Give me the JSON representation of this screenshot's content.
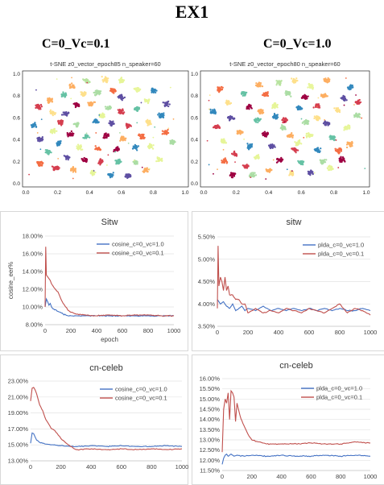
{
  "title": "EX1",
  "columns": [
    {
      "heading": "C=0_Vc=0.1"
    },
    {
      "heading": "C=0_Vc=1.0"
    }
  ],
  "chart_data": [
    {
      "type": "scatter",
      "title": "t-SNE z0_vector_epoch85 n_speaker=60",
      "xlim": [
        0,
        1
      ],
      "ylim": [
        0,
        1
      ],
      "xticks": [
        "0.0",
        "0.2",
        "0.4",
        "0.6",
        "0.8",
        "1.0"
      ],
      "yticks": [
        "0.0",
        "0.2",
        "0.4",
        "0.6",
        "0.8",
        "1.0"
      ],
      "clusters": [
        [
          0.38,
          0.94,
          "#b8e3a0"
        ],
        [
          0.5,
          0.95,
          "#fee08b"
        ],
        [
          0.29,
          0.89,
          "#fdae61"
        ],
        [
          0.7,
          0.86,
          "#e8f69c"
        ],
        [
          0.55,
          0.85,
          "#f46d43"
        ],
        [
          0.45,
          0.83,
          "#abdda4"
        ],
        [
          0.24,
          0.81,
          "#66c2a5"
        ],
        [
          0.36,
          0.82,
          "#fee08b"
        ],
        [
          0.6,
          0.79,
          "#5e4fa2"
        ],
        [
          0.76,
          0.76,
          "#e6f598"
        ],
        [
          0.8,
          0.85,
          "#3288bd"
        ],
        [
          0.15,
          0.76,
          "#fdae61"
        ],
        [
          0.08,
          0.7,
          "#d53e4f"
        ],
        [
          0.17,
          0.65,
          "#fee08b"
        ],
        [
          0.32,
          0.72,
          "#9e0142"
        ],
        [
          0.41,
          0.73,
          "#fdae61"
        ],
        [
          0.52,
          0.69,
          "#abdda4"
        ],
        [
          0.6,
          0.66,
          "#d53e4f"
        ],
        [
          0.7,
          0.68,
          "#66c2a5"
        ],
        [
          0.85,
          0.62,
          "#3288bd"
        ],
        [
          0.88,
          0.73,
          "#5e4fa2"
        ],
        [
          0.22,
          0.56,
          "#d53e4f"
        ],
        [
          0.32,
          0.54,
          "#abdda4"
        ],
        [
          0.44,
          0.57,
          "#3288bd"
        ],
        [
          0.54,
          0.55,
          "#5e4fa2"
        ],
        [
          0.64,
          0.53,
          "#d53e4f"
        ],
        [
          0.77,
          0.56,
          "#fee08b"
        ],
        [
          0.17,
          0.48,
          "#e6f598"
        ],
        [
          0.05,
          0.53,
          "#3288bd"
        ],
        [
          0.28,
          0.45,
          "#9e0142"
        ],
        [
          0.38,
          0.43,
          "#66c2a5"
        ],
        [
          0.5,
          0.44,
          "#9e0142"
        ],
        [
          0.61,
          0.41,
          "#fdae61"
        ],
        [
          0.73,
          0.43,
          "#f46d43"
        ],
        [
          0.92,
          0.38,
          "#abdda4"
        ],
        [
          0.09,
          0.41,
          "#5e4fa2"
        ],
        [
          0.21,
          0.37,
          "#3288bd"
        ],
        [
          0.34,
          0.33,
          "#e6f598"
        ],
        [
          0.45,
          0.32,
          "#f46d43"
        ],
        [
          0.57,
          0.31,
          "#9e0142"
        ],
        [
          0.69,
          0.33,
          "#3288bd"
        ],
        [
          0.78,
          0.34,
          "#e6f598"
        ],
        [
          0.14,
          0.29,
          "#66c2a5"
        ],
        [
          0.26,
          0.24,
          "#5e4fa2"
        ],
        [
          0.37,
          0.22,
          "#9e0142"
        ],
        [
          0.47,
          0.2,
          "#d53e4f"
        ],
        [
          0.58,
          0.2,
          "#66c2a5"
        ],
        [
          0.69,
          0.19,
          "#abdda4"
        ],
        [
          0.84,
          0.22,
          "#e6f598"
        ],
        [
          0.19,
          0.14,
          "#d53e4f"
        ],
        [
          0.3,
          0.13,
          "#fdae61"
        ],
        [
          0.42,
          0.1,
          "#e6f598"
        ],
        [
          0.53,
          0.08,
          "#3288bd"
        ],
        [
          0.64,
          0.07,
          "#5e4fa2"
        ],
        [
          0.75,
          0.12,
          "#fdae61"
        ],
        [
          0.09,
          0.18,
          "#f46d43"
        ],
        [
          0.6,
          0.94,
          "#e6f598"
        ],
        [
          0.88,
          0.47,
          "#f46d43"
        ],
        [
          0.25,
          0.64,
          "#5e4fa2"
        ],
        [
          0.48,
          0.62,
          "#e6f598"
        ]
      ]
    },
    {
      "type": "scatter",
      "title": "t-SNE z0_vector_epoch80 n_speaker=60",
      "xlim": [
        0,
        1
      ],
      "ylim": [
        0,
        1
      ],
      "xticks": [
        "0.0",
        "0.2",
        "0.4",
        "0.6",
        "0.8",
        "1.0"
      ],
      "yticks": [
        "0.0",
        "0.2",
        "0.4",
        "0.6",
        "0.8",
        "1.0"
      ],
      "clusters": [
        [
          0.46,
          0.92,
          "#b8e3a0"
        ],
        [
          0.56,
          0.94,
          "#fee08b"
        ],
        [
          0.34,
          0.9,
          "#fdae61"
        ],
        [
          0.66,
          0.89,
          "#e8f69c"
        ],
        [
          0.25,
          0.82,
          "#66c2a5"
        ],
        [
          0.38,
          0.81,
          "#f46d43"
        ],
        [
          0.52,
          0.82,
          "#abdda4"
        ],
        [
          0.74,
          0.8,
          "#fdae61"
        ],
        [
          0.86,
          0.78,
          "#5e4fa2"
        ],
        [
          0.15,
          0.74,
          "#fee08b"
        ],
        [
          0.06,
          0.66,
          "#3288bd"
        ],
        [
          0.28,
          0.7,
          "#9e0142"
        ],
        [
          0.44,
          0.71,
          "#e6f598"
        ],
        [
          0.59,
          0.69,
          "#3288bd"
        ],
        [
          0.7,
          0.71,
          "#d53e4f"
        ],
        [
          0.82,
          0.67,
          "#fee08b"
        ],
        [
          0.94,
          0.62,
          "#abdda4"
        ],
        [
          0.17,
          0.6,
          "#5e4fa2"
        ],
        [
          0.33,
          0.58,
          "#66c2a5"
        ],
        [
          0.5,
          0.58,
          "#d53e4f"
        ],
        [
          0.63,
          0.56,
          "#abdda4"
        ],
        [
          0.76,
          0.55,
          "#5e4fa2"
        ],
        [
          0.88,
          0.51,
          "#e6f598"
        ],
        [
          0.08,
          0.52,
          "#d53e4f"
        ],
        [
          0.22,
          0.47,
          "#fdae61"
        ],
        [
          0.38,
          0.45,
          "#9e0142"
        ],
        [
          0.53,
          0.44,
          "#fdae61"
        ],
        [
          0.65,
          0.44,
          "#e6f598"
        ],
        [
          0.79,
          0.42,
          "#66c2a5"
        ],
        [
          0.9,
          0.36,
          "#fdae61"
        ],
        [
          0.12,
          0.39,
          "#e6f598"
        ],
        [
          0.28,
          0.34,
          "#3288bd"
        ],
        [
          0.42,
          0.34,
          "#5e4fa2"
        ],
        [
          0.56,
          0.31,
          "#d53e4f"
        ],
        [
          0.7,
          0.31,
          "#3288bd"
        ],
        [
          0.83,
          0.3,
          "#f46d43"
        ],
        [
          0.19,
          0.27,
          "#d53e4f"
        ],
        [
          0.33,
          0.24,
          "#e6f598"
        ],
        [
          0.47,
          0.21,
          "#9e0142"
        ],
        [
          0.6,
          0.19,
          "#66c2a5"
        ],
        [
          0.73,
          0.2,
          "#abdda4"
        ],
        [
          0.26,
          0.16,
          "#d53e4f"
        ],
        [
          0.4,
          0.12,
          "#fdae61"
        ],
        [
          0.54,
          0.09,
          "#fee08b"
        ],
        [
          0.66,
          0.1,
          "#5e4fa2"
        ],
        [
          0.78,
          0.14,
          "#e6f598"
        ],
        [
          0.13,
          0.21,
          "#f46d43"
        ],
        [
          0.49,
          0.51,
          "#abdda4"
        ],
        [
          0.35,
          0.66,
          "#fdae61"
        ],
        [
          0.62,
          0.79,
          "#9e0142"
        ],
        [
          0.9,
          0.88,
          "#3288bd"
        ],
        [
          0.1,
          0.86,
          "#f46d43"
        ],
        [
          0.85,
          0.22,
          "#9e0142"
        ],
        [
          0.95,
          0.74,
          "#d53e4f"
        ],
        [
          0.44,
          0.61,
          "#3288bd"
        ],
        [
          0.7,
          0.6,
          "#fee08b"
        ],
        [
          0.58,
          0.37,
          "#e6f598"
        ],
        [
          0.3,
          0.08,
          "#abdda4"
        ],
        [
          0.18,
          0.08,
          "#9e0142"
        ],
        [
          0.76,
          0.94,
          "#fdae61"
        ]
      ]
    },
    {
      "type": "line",
      "title": "Sitw",
      "xlabel": "epoch",
      "ylabel": "cosine_eer%",
      "xlim": [
        0,
        1000
      ],
      "ylim": [
        8,
        18
      ],
      "xticks": [
        0,
        200,
        400,
        600,
        800,
        1000
      ],
      "yticks": [
        "8.00%",
        "10.00%",
        "12.00%",
        "14.00%",
        "16.00%",
        "18.00%"
      ],
      "legend_position": "top-right",
      "series": [
        {
          "name": "cosine_c=0_vc=1.0",
          "color": "#4472c4",
          "x": [
            0,
            10,
            20,
            30,
            40,
            50,
            60,
            80,
            100,
            120,
            140,
            160,
            180,
            200,
            240,
            300,
            400,
            500,
            600,
            700,
            800,
            900,
            1000
          ],
          "y": [
            10.0,
            10.9,
            10.6,
            10.2,
            10.4,
            10.0,
            9.8,
            9.7,
            9.5,
            9.4,
            9.2,
            9.1,
            9.0,
            9.0,
            9.0,
            9.0,
            9.0,
            9.0,
            9.0,
            9.0,
            9.0,
            9.0,
            9.0
          ]
        },
        {
          "name": "cosine_c=0_vc=0.1",
          "color": "#c0504d",
          "x": [
            0,
            5,
            10,
            20,
            30,
            40,
            50,
            60,
            80,
            100,
            120,
            140,
            160,
            180,
            200,
            240,
            300,
            400,
            500,
            600,
            700,
            800,
            900,
            1000
          ],
          "y": [
            10.0,
            16.8,
            13.6,
            13.4,
            13.2,
            13.0,
            12.6,
            12.4,
            12.0,
            11.7,
            11.0,
            10.4,
            10.0,
            9.6,
            9.4,
            9.2,
            9.1,
            9.0,
            9.1,
            9.0,
            9.1,
            9.1,
            9.0,
            9.0
          ]
        }
      ]
    },
    {
      "type": "line",
      "title": "sitw",
      "xlim": [
        0,
        1000
      ],
      "ylim": [
        3.5,
        5.5
      ],
      "xticks": [
        0,
        200,
        400,
        600,
        800,
        1000
      ],
      "yticks": [
        "3.50%",
        "4.00%",
        "4.50%",
        "5.00%",
        "5.50%"
      ],
      "legend_position": "top-right",
      "series": [
        {
          "name": "plda_c=0_vc=1.0",
          "color": "#4472c4",
          "x": [
            0,
            20,
            40,
            60,
            80,
            100,
            120,
            140,
            160,
            180,
            200,
            250,
            300,
            350,
            400,
            450,
            500,
            550,
            600,
            650,
            700,
            750,
            800,
            850,
            900,
            950,
            1000
          ],
          "y": [
            4.1,
            4.0,
            4.05,
            3.95,
            3.9,
            4.0,
            3.85,
            3.9,
            3.95,
            3.85,
            3.9,
            3.85,
            3.95,
            3.85,
            3.9,
            3.85,
            3.9,
            3.85,
            3.9,
            3.85,
            3.9,
            3.85,
            3.9,
            3.85,
            3.85,
            3.9,
            3.85
          ]
        },
        {
          "name": "plda_c=0_vc=0.1",
          "color": "#c0504d",
          "x": [
            0,
            5,
            10,
            20,
            30,
            40,
            50,
            60,
            70,
            80,
            100,
            120,
            140,
            160,
            180,
            200,
            250,
            300,
            350,
            400,
            450,
            500,
            550,
            600,
            650,
            700,
            750,
            800,
            850,
            900,
            950,
            1000
          ],
          "y": [
            3.9,
            5.3,
            4.4,
            4.6,
            4.5,
            4.3,
            4.6,
            4.3,
            4.4,
            4.2,
            4.2,
            4.1,
            4.1,
            4.0,
            4.0,
            3.8,
            3.9,
            3.8,
            3.85,
            3.8,
            3.9,
            3.85,
            3.8,
            3.9,
            3.85,
            3.8,
            3.9,
            4.0,
            3.8,
            3.9,
            3.85,
            3.75
          ]
        }
      ]
    },
    {
      "type": "line",
      "title": "cn-celeb",
      "xlim": [
        0,
        1000
      ],
      "ylim": [
        13,
        23
      ],
      "xticks": [
        0,
        200,
        400,
        600,
        800,
        1000
      ],
      "yticks": [
        "13.00%",
        "15.00%",
        "17.00%",
        "19.00%",
        "21.00%",
        "23.00%"
      ],
      "legend_position": "top-right",
      "series": [
        {
          "name": "cosine_c=0_vc=1.0",
          "color": "#4472c4",
          "x": [
            0,
            10,
            20,
            30,
            40,
            60,
            80,
            100,
            150,
            200,
            300,
            400,
            500,
            600,
            700,
            800,
            900,
            1000
          ],
          "y": [
            15.2,
            16.5,
            16.4,
            16.0,
            15.6,
            15.3,
            15.2,
            15.1,
            15.0,
            14.9,
            14.8,
            14.9,
            14.8,
            14.9,
            14.8,
            14.8,
            14.9,
            14.8
          ]
        },
        {
          "name": "cosine_c=0_vc=0.1",
          "color": "#c0504d",
          "x": [
            0,
            10,
            20,
            30,
            40,
            50,
            60,
            80,
            100,
            120,
            140,
            160,
            200,
            250,
            300,
            400,
            500,
            600,
            700,
            800,
            900,
            1000
          ],
          "y": [
            20.5,
            22.1,
            22.2,
            21.9,
            21.4,
            20.7,
            20.0,
            19.3,
            18.2,
            17.6,
            17.0,
            16.8,
            15.8,
            15.0,
            14.4,
            14.5,
            14.4,
            14.5,
            14.4,
            14.5,
            14.4,
            14.5
          ]
        }
      ]
    },
    {
      "type": "line",
      "title": "cn-celeb",
      "xlim": [
        0,
        1000
      ],
      "ylim": [
        11.5,
        16
      ],
      "xticks": [
        0,
        200,
        400,
        600,
        800,
        1000
      ],
      "yticks": [
        "11.50%",
        "12.00%",
        "12.50%",
        "13.00%",
        "13.50%",
        "14.00%",
        "14.50%",
        "15.00%",
        "15.50%",
        "16.00%"
      ],
      "legend_position": "top-right",
      "series": [
        {
          "name": "plda_c=0_vc=1.0",
          "color": "#4472c4",
          "x": [
            0,
            10,
            20,
            30,
            40,
            60,
            80,
            100,
            150,
            200,
            300,
            400,
            500,
            600,
            700,
            800,
            900,
            1000
          ],
          "y": [
            11.8,
            12.1,
            12.25,
            12.3,
            12.2,
            12.3,
            12.2,
            12.25,
            12.2,
            12.25,
            12.2,
            12.25,
            12.2,
            12.2,
            12.25,
            12.2,
            12.25,
            12.2
          ]
        },
        {
          "name": "plda_c=0_vc=0.1",
          "color": "#c0504d",
          "x": [
            0,
            10,
            20,
            30,
            40,
            50,
            60,
            70,
            80,
            90,
            100,
            110,
            120,
            140,
            160,
            180,
            200,
            250,
            300,
            400,
            500,
            600,
            700,
            800,
            900,
            1000
          ],
          "y": [
            12.4,
            14.5,
            15.0,
            14.8,
            15.3,
            14.0,
            15.4,
            15.3,
            15.1,
            13.9,
            14.8,
            14.5,
            14.2,
            13.8,
            13.5,
            13.2,
            13.0,
            12.9,
            12.8,
            12.8,
            12.8,
            12.85,
            12.8,
            12.8,
            12.9,
            12.85
          ]
        }
      ]
    }
  ]
}
